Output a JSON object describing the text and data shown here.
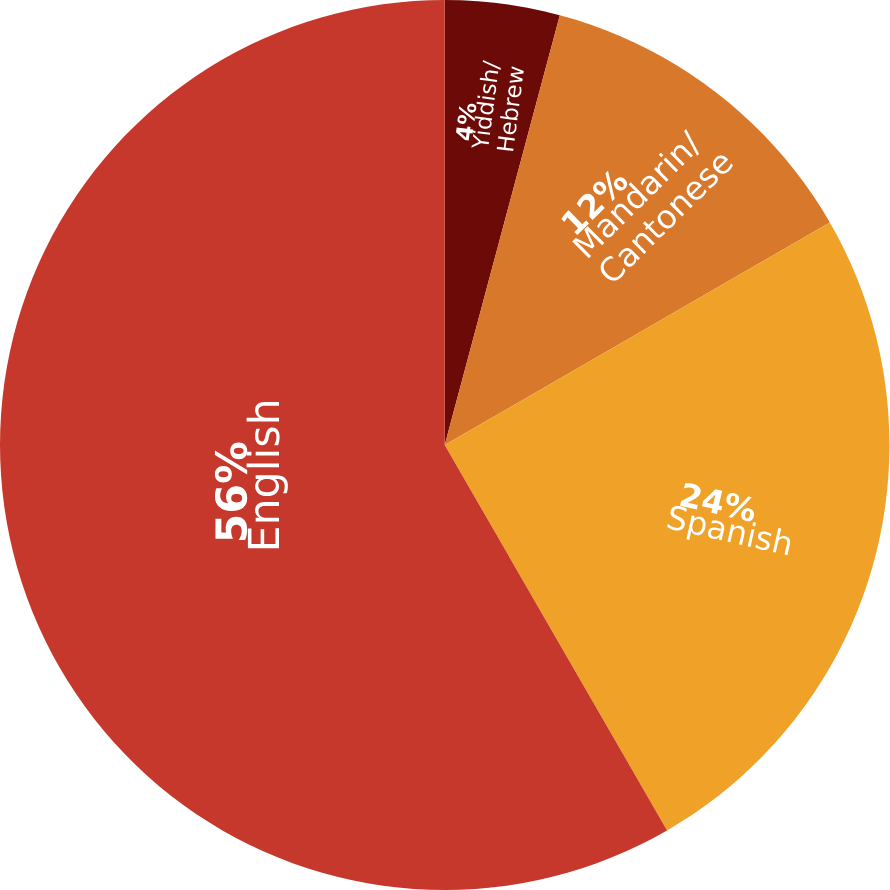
{
  "chart_data": {
    "type": "pie",
    "categories": [
      "Yiddish/ Hebrew",
      "Mandarin/ Cantonese",
      "Spanish",
      "English"
    ],
    "values": [
      4,
      12,
      24,
      56
    ],
    "value_labels": [
      "4%",
      "12%",
      "24%",
      "56%"
    ],
    "colors": [
      "#6b0a06",
      "#d8782a",
      "#f0a228",
      "#c6382b"
    ]
  }
}
